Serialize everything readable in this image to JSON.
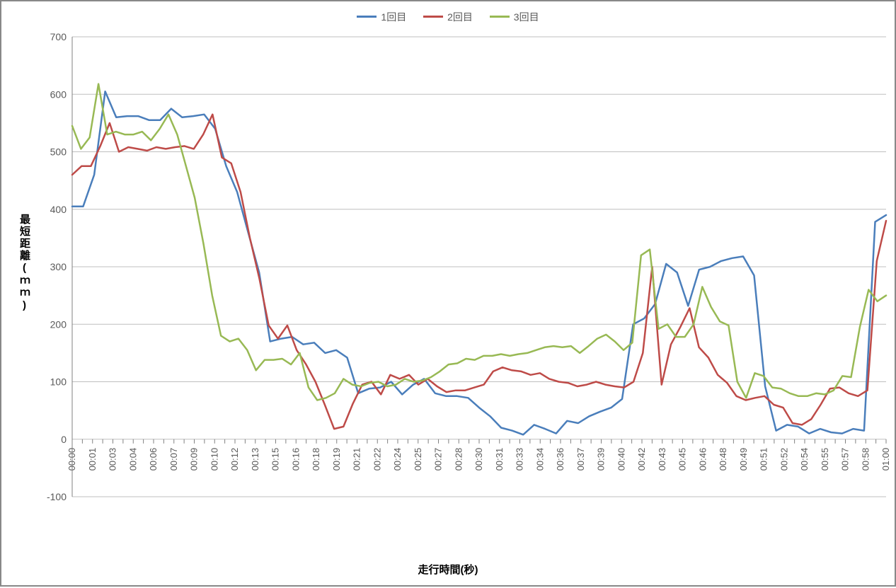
{
  "chart": {
    "type": "line",
    "background_color": "#ffffff",
    "border_color": "#888888",
    "grid_color": "#bfbfbf",
    "axis_line_color": "#808080",
    "tick_color": "#808080",
    "text_color": "#595959",
    "axis_label_color": "#000000",
    "line_width": 2.5,
    "y_axis": {
      "label": "最短距離(ｍｍ)",
      "min": -100,
      "max": 700,
      "tick_step": 100,
      "ticks": [
        -100,
        0,
        100,
        200,
        300,
        400,
        500,
        600,
        700
      ],
      "label_fontsize": 15,
      "tick_fontsize": 14
    },
    "x_axis": {
      "label": "走行時間(秒)",
      "label_fontsize": 15,
      "tick_fontsize": 13,
      "tick_rotation": -90,
      "categories": [
        "00:00",
        "00:01",
        "00:03",
        "00:04",
        "00:06",
        "00:07",
        "00:09",
        "00:10",
        "00:12",
        "00:13",
        "00:15",
        "00:16",
        "00:18",
        "00:19",
        "00:21",
        "00:22",
        "00:24",
        "00:25",
        "00:27",
        "00:28",
        "00:30",
        "00:31",
        "00:33",
        "00:34",
        "00:36",
        "00:37",
        "00:39",
        "00:40",
        "00:42",
        "00:43",
        "00:45",
        "00:46",
        "00:48",
        "00:49",
        "00:51",
        "00:52",
        "00:54",
        "00:55",
        "00:57",
        "00:58",
        "01:00"
      ],
      "minor_ticks_between": 1
    },
    "legend": {
      "position": "top",
      "fontsize": 14,
      "items": [
        {
          "label": "1回目",
          "color": "#4a7ebb"
        },
        {
          "label": "2回目",
          "color": "#be4b48"
        },
        {
          "label": "3回目",
          "color": "#98b954"
        }
      ]
    },
    "series": [
      {
        "name": "1回目",
        "color": "#4a7ebb",
        "data": [
          405,
          405,
          460,
          605,
          560,
          562,
          562,
          555,
          555,
          575,
          560,
          562,
          565,
          540,
          475,
          430,
          360,
          290,
          170,
          175,
          178,
          165,
          168,
          150,
          155,
          142,
          80,
          88,
          90,
          100,
          78,
          95,
          105,
          80,
          75,
          75,
          72,
          55,
          40,
          20,
          15,
          8,
          25,
          18,
          10,
          32,
          28,
          40,
          48,
          55,
          70,
          200,
          210,
          235,
          305,
          290,
          232,
          295,
          300,
          310,
          315,
          318,
          285,
          92,
          15,
          25,
          22,
          10,
          18,
          12,
          10,
          18,
          15,
          378,
          390
        ]
      },
      {
        "name": "2回目",
        "color": "#be4b48",
        "data": [
          460,
          475,
          475,
          510,
          550,
          500,
          508,
          505,
          502,
          508,
          505,
          508,
          510,
          505,
          530,
          565,
          490,
          480,
          430,
          350,
          280,
          198,
          175,
          198,
          155,
          130,
          100,
          60,
          18,
          22,
          62,
          95,
          100,
          78,
          112,
          105,
          112,
          95,
          105,
          92,
          82,
          85,
          85,
          90,
          95,
          118,
          125,
          120,
          118,
          112,
          115,
          105,
          100,
          98,
          92,
          95,
          100,
          95,
          92,
          90,
          100,
          150,
          300,
          95,
          165,
          195,
          228,
          160,
          142,
          112,
          98,
          75,
          68,
          72,
          75,
          60,
          55,
          28,
          25,
          35,
          60,
          88,
          90,
          80,
          75,
          85,
          310,
          380
        ]
      },
      {
        "name": "3回目",
        "color": "#98b954",
        "data": [
          545,
          505,
          525,
          618,
          530,
          535,
          530,
          530,
          535,
          520,
          540,
          565,
          530,
          475,
          420,
          340,
          250,
          180,
          170,
          175,
          155,
          120,
          138,
          138,
          140,
          130,
          150,
          90,
          68,
          72,
          80,
          105,
          95,
          92,
          98,
          100,
          92,
          95,
          105,
          100,
          102,
          108,
          118,
          130,
          132,
          140,
          138,
          145,
          145,
          148,
          145,
          148,
          150,
          155,
          160,
          162,
          160,
          162,
          150,
          162,
          175,
          182,
          170,
          155,
          168,
          320,
          330,
          192,
          200,
          178,
          178,
          200,
          265,
          230,
          205,
          198,
          100,
          72,
          115,
          110,
          90,
          88,
          80,
          75,
          75,
          80,
          78,
          85,
          110,
          108,
          195,
          260,
          240,
          250
        ]
      }
    ]
  }
}
